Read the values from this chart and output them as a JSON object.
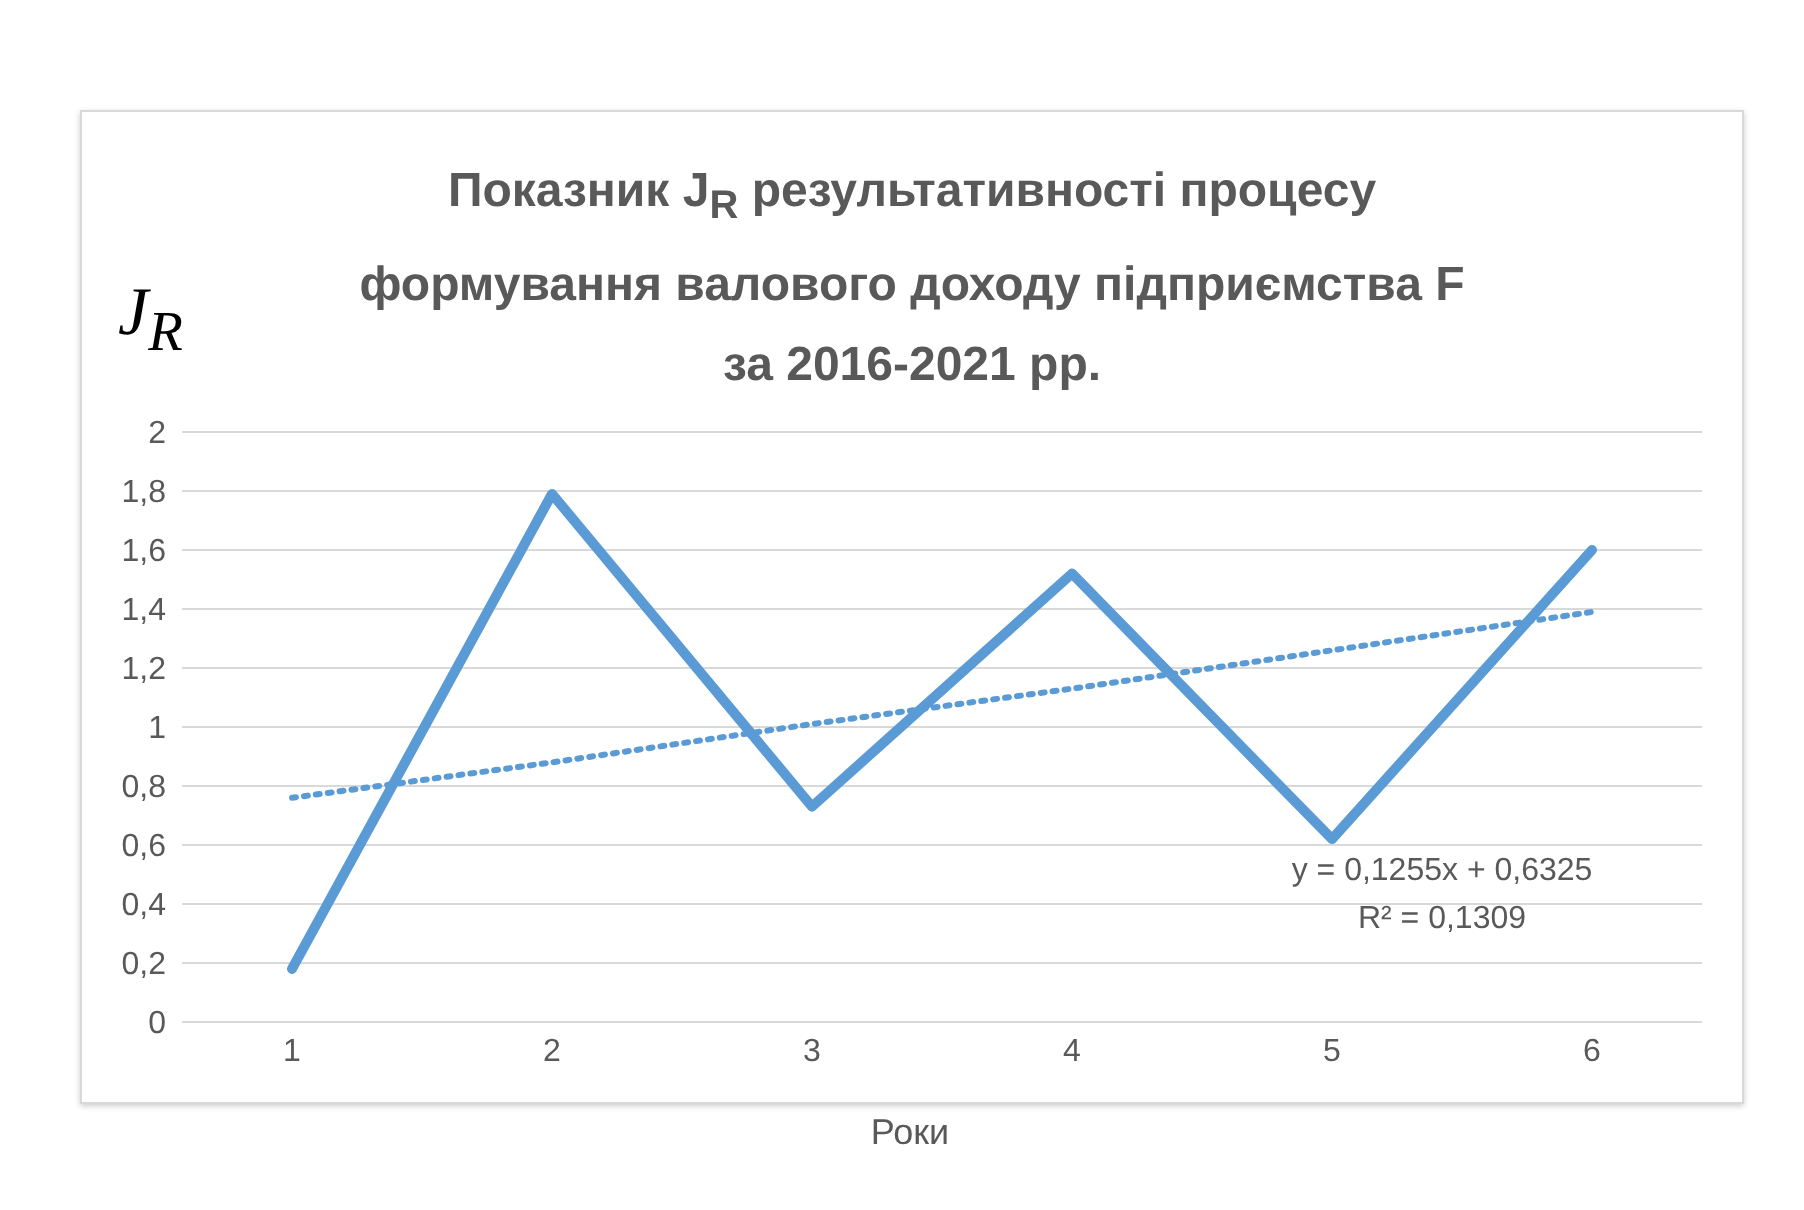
{
  "chart_data": {
    "type": "line",
    "title": "Показник  J$_{R}$ результативності процесу формування валового доходу підприємства F за 2016-2021 рр.",
    "ylabel": "J$_{R}$",
    "xlabel": "Роки",
    "categories": [
      "1",
      "2",
      "3",
      "4",
      "5",
      "6"
    ],
    "series": [
      {
        "color": "#5b9bd5",
        "values": [
          0.18,
          1.79,
          0.73,
          1.52,
          0.62,
          1.6
        ],
        "line_style": "solid"
      },
      {
        "color": "#5b9bd5",
        "values": [
          0.76,
          0.88,
          1.01,
          1.13,
          1.26,
          1.39
        ],
        "line_style": "dotted"
      }
    ],
    "ylim": [
      0,
      2
    ],
    "yticks": [
      0,
      {
        "value": 0.2,
        "label": "0,2"
      },
      {
        "value": 0.4,
        "label": "0,4"
      },
      {
        "value": 0.6,
        "label": "0,6"
      },
      {
        "value": 0.8,
        "label": "0,8"
      },
      1,
      {
        "value": 1.2,
        "label": "1,2"
      },
      {
        "value": 1.4,
        "label": "1,4"
      },
      {
        "value": 1.6,
        "label": "1,6"
      },
      {
        "value": 1.8,
        "label": "1,8"
      },
      2
    ],
    "grid": "y",
    "marker": "none",
    "annotations": [
      "y = 0,1255x + 0,6325",
      "R² = 0,1309"
    ]
  }
}
